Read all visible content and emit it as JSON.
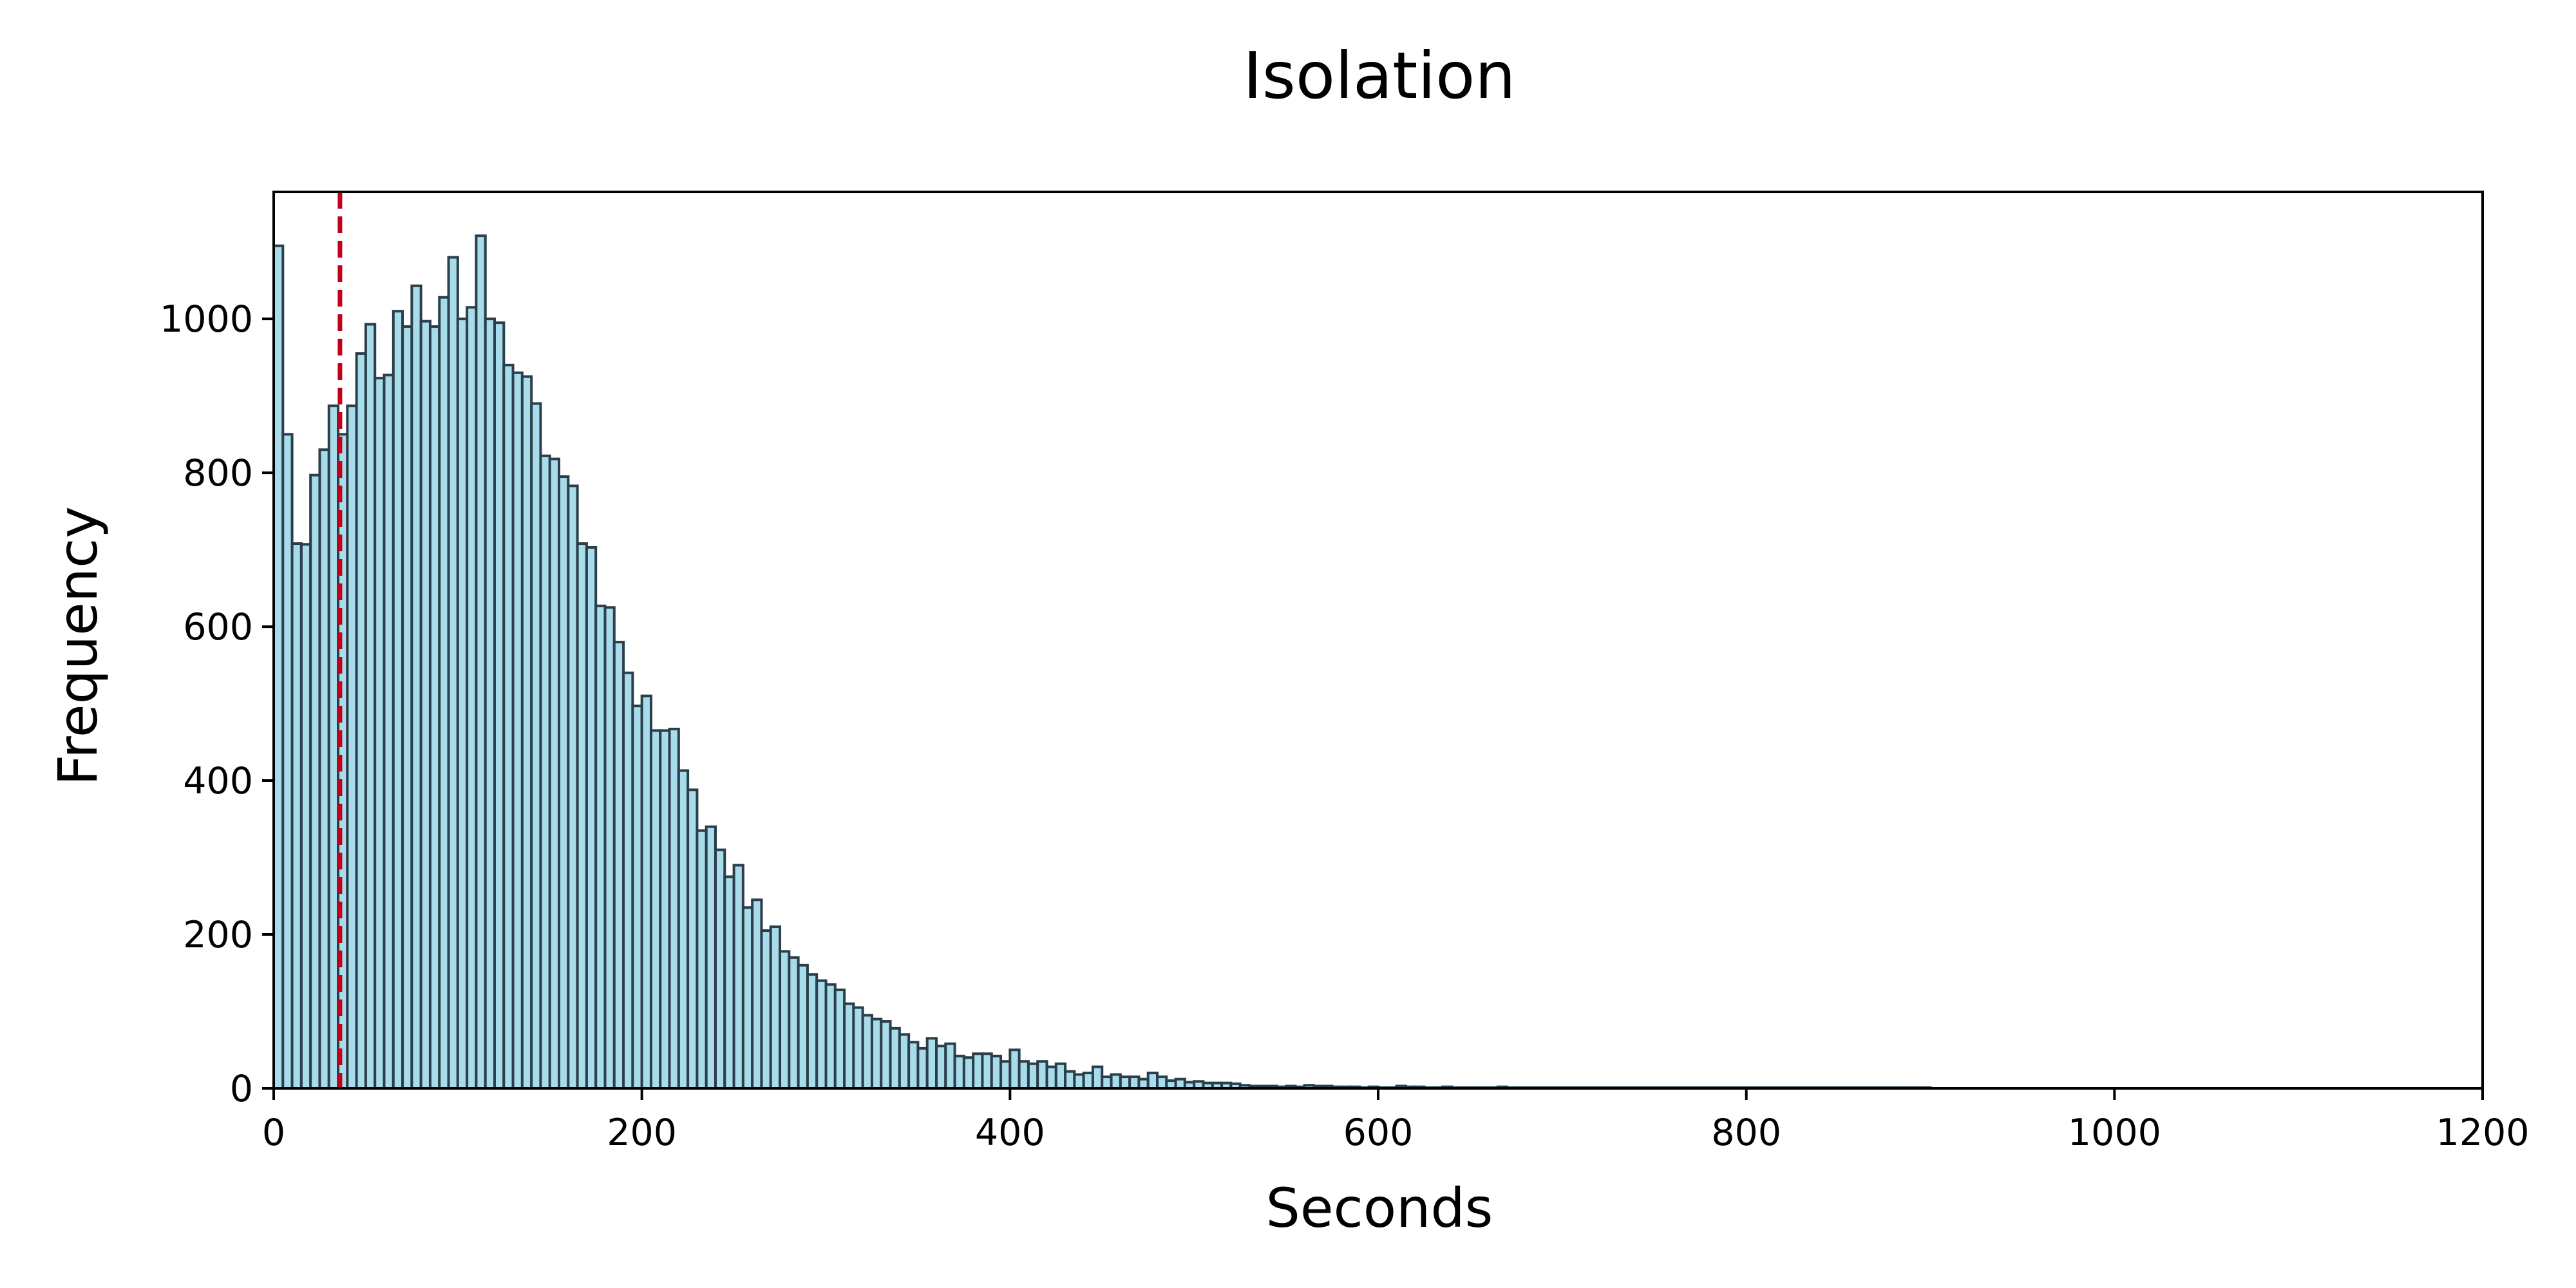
{
  "chart_data": {
    "type": "bar",
    "title": "Isolation",
    "xlabel": "Seconds",
    "ylabel": "Frequency",
    "xlim": [
      0,
      1200
    ],
    "ylim": [
      0,
      1165
    ],
    "xticks": [
      0,
      200,
      400,
      600,
      800,
      1000,
      1200
    ],
    "yticks": [
      0,
      200,
      400,
      600,
      800,
      1000
    ],
    "bin_width": 5,
    "bin_start": 0,
    "values": [
      1095,
      850,
      708,
      707,
      797,
      830,
      887,
      850,
      887,
      955,
      993,
      923,
      927,
      1010,
      990,
      1043,
      997,
      990,
      1028,
      1080,
      1000,
      1015,
      1108,
      1000,
      995,
      940,
      930,
      925,
      890,
      822,
      818,
      795,
      783,
      708,
      703,
      627,
      625,
      580,
      540,
      497,
      510,
      465,
      465,
      467,
      413,
      388,
      335,
      340,
      310,
      275,
      290,
      235,
      245,
      205,
      210,
      178,
      170,
      160,
      148,
      140,
      135,
      128,
      110,
      105,
      95,
      90,
      87,
      78,
      70,
      60,
      52,
      65,
      55,
      58,
      42,
      40,
      45,
      45,
      42,
      35,
      50,
      35,
      32,
      35,
      28,
      32,
      22,
      18,
      20,
      28,
      15,
      18,
      15,
      15,
      12,
      20,
      15,
      10,
      12,
      8,
      9,
      7,
      7,
      7,
      6,
      4,
      3,
      3,
      3,
      2,
      3,
      2,
      4,
      3,
      3,
      2,
      2,
      2,
      1,
      2,
      1,
      1,
      3,
      2,
      2,
      1,
      1,
      2,
      1,
      1,
      1,
      1,
      1,
      2,
      1,
      1,
      1,
      1,
      1,
      1,
      1,
      1,
      1,
      1,
      1,
      1,
      1,
      1,
      1,
      1,
      1,
      1,
      1,
      1,
      1,
      1,
      1,
      1,
      1,
      1,
      1,
      1,
      1,
      1,
      1,
      1,
      1,
      1,
      1,
      1,
      1,
      1,
      1,
      1,
      1,
      1,
      1,
      1,
      1,
      1
    ],
    "threshold_line": {
      "x": 36,
      "style": "dashed",
      "color": "#c0001a"
    },
    "bar_color": "#a8dcea",
    "bar_edge_color": "#2a3f4a",
    "grid": false,
    "legend": "none"
  }
}
